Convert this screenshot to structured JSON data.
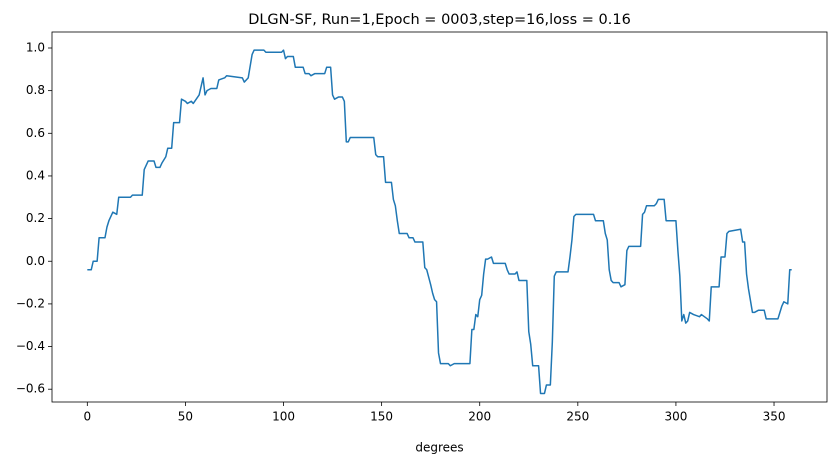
{
  "chart_data": {
    "type": "line",
    "title": "DLGN-SF, Run=1,Epoch = 0003,step=16,loss = 0.16",
    "xlabel": "degrees",
    "xlim": [
      -18,
      377
    ],
    "ylim": [
      -0.66,
      1.075
    ],
    "xticks": [
      0,
      50,
      100,
      150,
      200,
      250,
      300,
      350
    ],
    "yticks": [
      {
        "value": -0.6,
        "label": "−0.6"
      },
      {
        "value": -0.4,
        "label": "−0.4"
      },
      {
        "value": -0.2,
        "label": "−0.2"
      },
      {
        "value": 0.0,
        "label": "0.0"
      },
      {
        "value": 0.2,
        "label": "0.2"
      },
      {
        "value": 0.4,
        "label": "0.4"
      },
      {
        "value": 0.6,
        "label": "0.6"
      },
      {
        "value": 0.8,
        "label": "0.8"
      },
      {
        "value": 1.0,
        "label": "1.0"
      }
    ],
    "grid": false,
    "series": [
      {
        "color": "#1f77b4",
        "x": [
          0,
          2,
          3,
          5,
          6,
          9,
          10,
          11,
          12,
          13,
          15,
          16,
          22,
          23,
          28,
          29,
          30,
          31,
          34,
          35,
          37,
          38,
          40,
          41,
          43,
          44,
          47,
          48,
          50,
          51,
          53,
          54,
          57,
          59,
          60,
          61,
          63,
          66,
          67,
          70,
          71,
          79,
          80,
          82,
          84,
          85,
          90,
          91,
          99,
          100,
          101,
          102,
          105,
          106,
          110,
          111,
          113,
          114,
          116,
          121,
          122,
          124,
          125,
          126,
          128,
          130,
          131,
          132,
          133,
          134,
          146,
          147,
          148,
          151,
          152,
          155,
          156,
          157,
          158,
          159,
          163,
          164,
          166,
          167,
          171,
          172,
          173,
          175,
          176,
          177,
          178,
          179,
          180,
          184,
          185,
          187,
          195,
          196,
          197,
          198,
          199,
          200,
          201,
          202,
          203,
          204,
          206,
          207,
          213,
          214,
          215,
          218,
          219,
          220,
          224,
          225,
          226,
          227,
          230,
          231,
          233,
          234,
          236,
          237,
          238,
          239,
          245,
          246,
          247,
          248,
          249,
          258,
          259,
          263,
          264,
          265,
          266,
          267,
          268,
          271,
          272,
          274,
          275,
          276,
          282,
          283,
          284,
          285,
          289,
          290,
          291,
          294,
          295,
          300,
          301,
          302,
          303,
          304,
          305,
          306,
          307,
          309,
          312,
          313,
          316,
          317,
          318,
          322,
          323,
          325,
          326,
          327,
          333,
          334,
          335,
          336,
          337,
          339,
          340,
          342,
          345,
          346,
          352,
          354,
          355,
          357,
          358,
          359
        ],
        "values": [
          -0.04,
          -0.04,
          0.0,
          0.0,
          0.11,
          0.11,
          0.16,
          0.19,
          0.21,
          0.23,
          0.22,
          0.3,
          0.3,
          0.31,
          0.31,
          0.43,
          0.45,
          0.47,
          0.47,
          0.44,
          0.44,
          0.46,
          0.49,
          0.53,
          0.53,
          0.65,
          0.65,
          0.76,
          0.75,
          0.74,
          0.75,
          0.74,
          0.78,
          0.86,
          0.78,
          0.8,
          0.81,
          0.81,
          0.85,
          0.86,
          0.87,
          0.86,
          0.84,
          0.86,
          0.97,
          0.99,
          0.99,
          0.98,
          0.98,
          0.99,
          0.95,
          0.96,
          0.96,
          0.91,
          0.91,
          0.88,
          0.88,
          0.87,
          0.88,
          0.88,
          0.91,
          0.91,
          0.78,
          0.76,
          0.77,
          0.77,
          0.75,
          0.56,
          0.56,
          0.58,
          0.58,
          0.5,
          0.49,
          0.49,
          0.37,
          0.37,
          0.29,
          0.26,
          0.19,
          0.13,
          0.13,
          0.11,
          0.11,
          0.09,
          0.09,
          -0.03,
          -0.04,
          -0.11,
          -0.15,
          -0.18,
          -0.19,
          -0.43,
          -0.48,
          -0.48,
          -0.49,
          -0.48,
          -0.48,
          -0.32,
          -0.32,
          -0.25,
          -0.26,
          -0.18,
          -0.16,
          -0.06,
          0.01,
          0.01,
          0.02,
          -0.01,
          -0.01,
          -0.04,
          -0.06,
          -0.06,
          -0.05,
          -0.09,
          -0.09,
          -0.33,
          -0.39,
          -0.49,
          -0.49,
          -0.62,
          -0.62,
          -0.58,
          -0.58,
          -0.38,
          -0.07,
          -0.05,
          -0.05,
          0.02,
          0.1,
          0.21,
          0.22,
          0.22,
          0.19,
          0.19,
          0.13,
          0.1,
          -0.04,
          -0.09,
          -0.1,
          -0.1,
          -0.12,
          -0.11,
          0.05,
          0.07,
          0.07,
          0.22,
          0.23,
          0.26,
          0.26,
          0.27,
          0.29,
          0.29,
          0.19,
          0.19,
          0.05,
          -0.07,
          -0.28,
          -0.25,
          -0.29,
          -0.28,
          -0.24,
          -0.25,
          -0.26,
          -0.25,
          -0.27,
          -0.28,
          -0.12,
          -0.12,
          0.02,
          0.02,
          0.13,
          0.14,
          0.15,
          0.09,
          0.09,
          -0.06,
          -0.13,
          -0.24,
          -0.24,
          -0.23,
          -0.23,
          -0.27,
          -0.27,
          -0.21,
          -0.19,
          -0.2,
          -0.04,
          -0.04
        ]
      }
    ]
  }
}
